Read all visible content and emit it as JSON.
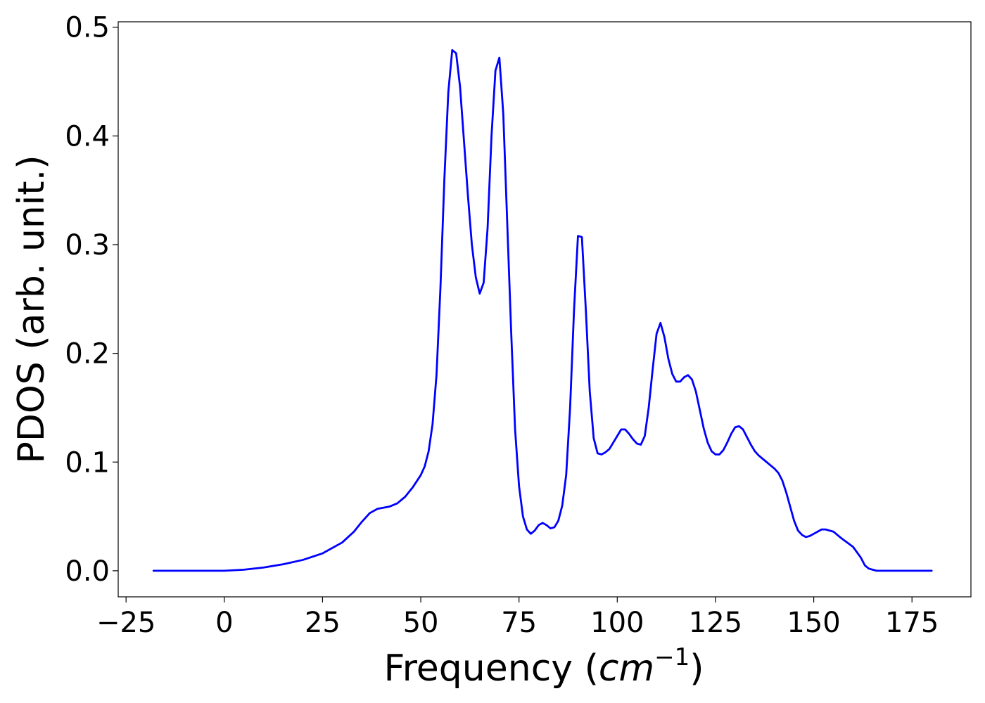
{
  "chart_data": {
    "type": "line",
    "title": "",
    "xlabel": "Frequency (",
    "xlabel_math": "cm",
    "xlabel_sup": "−1",
    "xlabel_end": ")",
    "ylabel": "PDOS (arb. unit.)",
    "xlim": [
      -27,
      190
    ],
    "ylim": [
      -0.024,
      0.505
    ],
    "xticks": [
      -25,
      0,
      25,
      50,
      75,
      100,
      125,
      150,
      175
    ],
    "xtick_labels": [
      "−25",
      "0",
      "25",
      "50",
      "75",
      "100",
      "125",
      "150",
      "175"
    ],
    "yticks": [
      0.0,
      0.1,
      0.2,
      0.3,
      0.4,
      0.5
    ],
    "ytick_labels": [
      "0.0",
      "0.1",
      "0.2",
      "0.3",
      "0.4",
      "0.5"
    ],
    "grid": false,
    "legend": "none",
    "series": [
      {
        "color": "#0000ff",
        "x": [
          -18,
          -10,
          0,
          5,
          10,
          15,
          20,
          25,
          30,
          33,
          35,
          37,
          39,
          42,
          44,
          46,
          48,
          50,
          51,
          52,
          53,
          54,
          55,
          56,
          57,
          58,
          59,
          60,
          61,
          62,
          63,
          64,
          65,
          66,
          67,
          68,
          69,
          70,
          71,
          72,
          73,
          74,
          75,
          76,
          77,
          78,
          79,
          80,
          81,
          82,
          83,
          84,
          85,
          86,
          87,
          88,
          89,
          90,
          91,
          92,
          93,
          94,
          95,
          96,
          97,
          98,
          99,
          100,
          101,
          102,
          103,
          104,
          105,
          106,
          107,
          108,
          109,
          110,
          111,
          112,
          113,
          114,
          115,
          116,
          117,
          118,
          119,
          120,
          121,
          122,
          123,
          124,
          125,
          126,
          127,
          128,
          129,
          130,
          131,
          132,
          133,
          134,
          135,
          136,
          137,
          138,
          139,
          140,
          141,
          142,
          143,
          144,
          145,
          146,
          147,
          148,
          149,
          150,
          151,
          152,
          153,
          155,
          157,
          160,
          162,
          163,
          164,
          165,
          166,
          168,
          170,
          175,
          180
        ],
        "y": [
          0.0,
          0.0,
          0.0,
          0.001,
          0.003,
          0.006,
          0.01,
          0.016,
          0.026,
          0.036,
          0.045,
          0.053,
          0.057,
          0.059,
          0.062,
          0.068,
          0.077,
          0.088,
          0.096,
          0.11,
          0.135,
          0.18,
          0.26,
          0.36,
          0.44,
          0.479,
          0.476,
          0.445,
          0.395,
          0.345,
          0.3,
          0.27,
          0.255,
          0.265,
          0.315,
          0.4,
          0.46,
          0.472,
          0.42,
          0.32,
          0.22,
          0.13,
          0.078,
          0.05,
          0.038,
          0.034,
          0.037,
          0.042,
          0.044,
          0.042,
          0.039,
          0.04,
          0.046,
          0.06,
          0.088,
          0.15,
          0.24,
          0.308,
          0.307,
          0.24,
          0.165,
          0.122,
          0.108,
          0.107,
          0.109,
          0.112,
          0.118,
          0.124,
          0.13,
          0.13,
          0.126,
          0.121,
          0.117,
          0.116,
          0.124,
          0.15,
          0.185,
          0.218,
          0.228,
          0.215,
          0.195,
          0.181,
          0.174,
          0.174,
          0.178,
          0.18,
          0.176,
          0.165,
          0.148,
          0.131,
          0.118,
          0.11,
          0.107,
          0.107,
          0.111,
          0.118,
          0.126,
          0.132,
          0.133,
          0.13,
          0.123,
          0.116,
          0.11,
          0.106,
          0.103,
          0.1,
          0.097,
          0.094,
          0.09,
          0.083,
          0.072,
          0.059,
          0.046,
          0.037,
          0.033,
          0.031,
          0.032,
          0.034,
          0.036,
          0.038,
          0.038,
          0.036,
          0.03,
          0.022,
          0.012,
          0.005,
          0.002,
          0.001,
          0.0,
          0.0,
          0.0,
          0.0,
          0.0
        ]
      }
    ]
  }
}
